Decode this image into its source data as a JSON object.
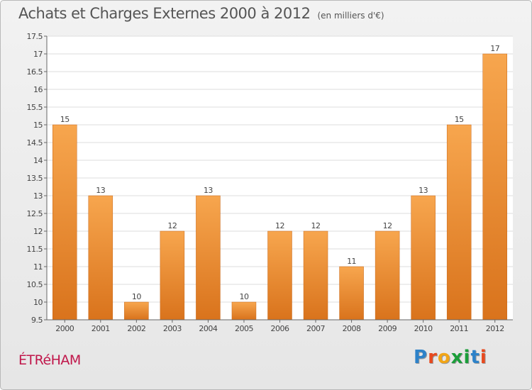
{
  "header": {
    "title": "Achats et Charges Externes 2000 à 2012",
    "unit": "(en milliers d'€)"
  },
  "commune": "ÉTRéHAM",
  "logo": {
    "text": "Proxiti",
    "letters": [
      "P",
      "r",
      "o",
      "x",
      "i",
      "t",
      "i"
    ],
    "colors": [
      "#2d82c9",
      "#e8491e",
      "#f2a516",
      "#1b9e3a",
      "#1b9e3a",
      "#2d82c9",
      "#e8491e"
    ]
  },
  "chart_data": {
    "type": "bar",
    "categories": [
      "2000",
      "2001",
      "2002",
      "2003",
      "2004",
      "2005",
      "2006",
      "2007",
      "2008",
      "2009",
      "2010",
      "2011",
      "2012"
    ],
    "values": [
      15,
      13,
      10,
      12,
      13,
      10,
      12,
      12,
      11,
      12,
      13,
      15,
      17
    ],
    "ylim": [
      9.5,
      17.5
    ],
    "yticks": [
      "9.5",
      "10",
      "10.5",
      "11",
      "11.5",
      "12",
      "12.5",
      "13",
      "13.5",
      "14",
      "14.5",
      "15",
      "15.5",
      "16",
      "16.5",
      "17",
      "17.5"
    ],
    "grid": true,
    "bar_color_top": "#f7a64e",
    "bar_color_bottom": "#d9731c"
  }
}
